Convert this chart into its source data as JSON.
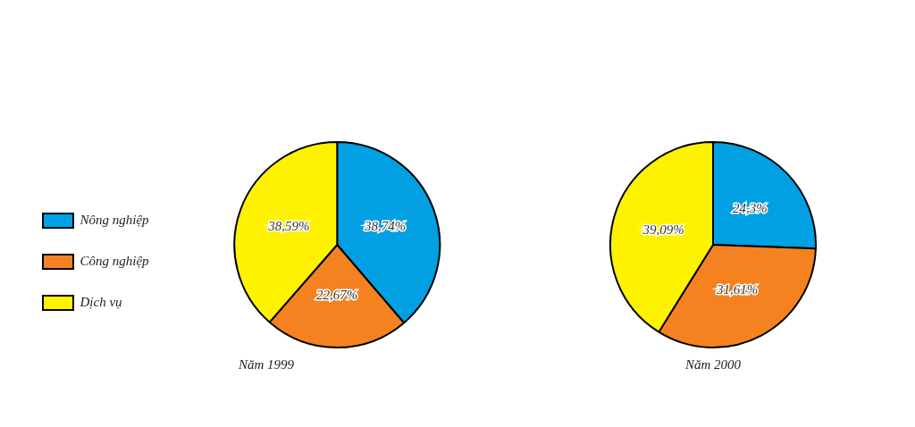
{
  "chart_data": [
    {
      "type": "pie",
      "title": "Năm 1999",
      "categories": [
        "Nông nghiệp",
        "Công nghiệp",
        "Dịch vụ"
      ],
      "values": [
        38.74,
        22.67,
        38.59
      ],
      "colors": [
        "#00a0e3",
        "#f58220",
        "#fff200"
      ],
      "value_labels": [
        "38,74%",
        "22,67%",
        "38,59%"
      ],
      "legend": "left"
    },
    {
      "type": "pie",
      "title": "Năm 2000",
      "categories": [
        null,
        null,
        null
      ],
      "values": [
        24.3,
        31.61,
        39.09
      ],
      "colors": [
        "#00a0e3",
        "#f58220",
        "#fff200"
      ],
      "value_labels": [
        "24,3%",
        "31,61%",
        "39,09%"
      ],
      "legend": false
    }
  ]
}
